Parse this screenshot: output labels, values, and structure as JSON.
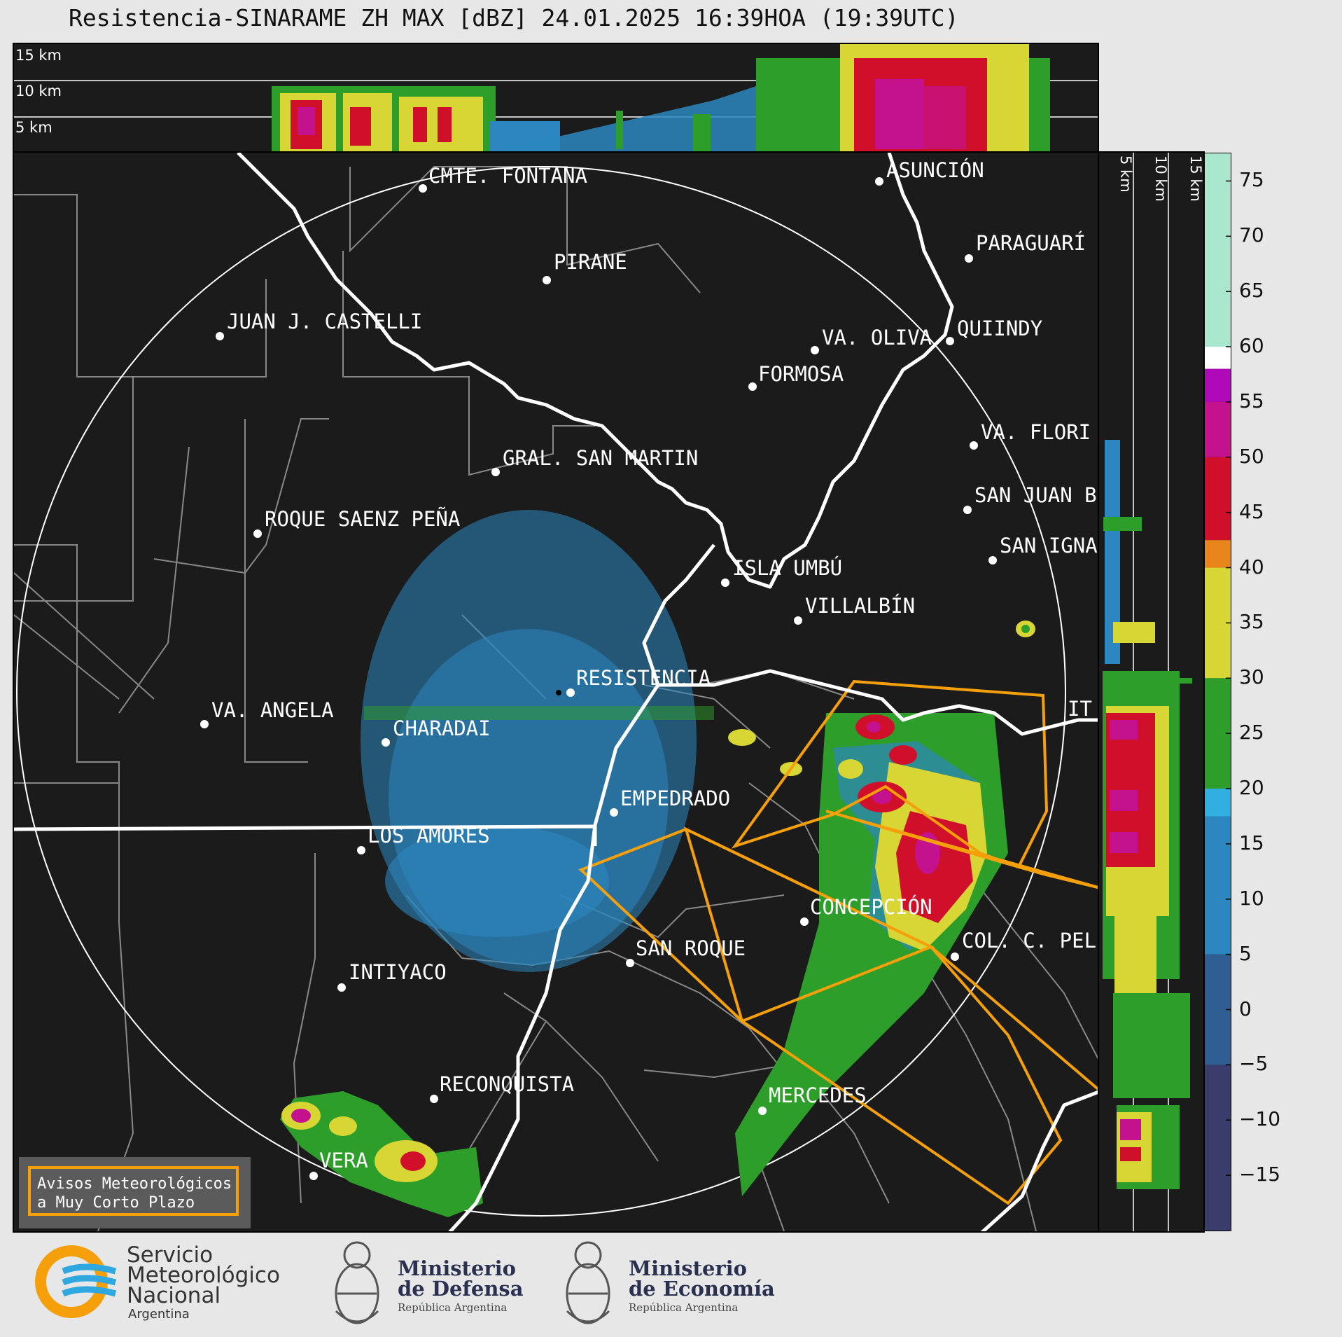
{
  "title": "Resistencia-SINARAME ZH MAX [dBZ] 24.01.2025 16:39HOA (19:39UTC)",
  "top_panel": {
    "height_labels": [
      "15 km",
      "10 km",
      "5 km"
    ]
  },
  "side_panel": {
    "height_labels": [
      "5 km",
      "10 km",
      "15 km"
    ]
  },
  "colorbar": {
    "unit": "dBZ",
    "ticks": [
      "75",
      "70",
      "65",
      "60",
      "55",
      "50",
      "45",
      "40",
      "35",
      "30",
      "25",
      "20",
      "15",
      "10",
      "5",
      "0",
      "−5",
      "−10",
      "−15"
    ],
    "range": [
      -20,
      77.5
    ],
    "bands": [
      {
        "from": -20,
        "to": -5,
        "color": "#3a3d6c"
      },
      {
        "from": -5,
        "to": 5,
        "color": "#2f5e92"
      },
      {
        "from": 5,
        "to": 17.5,
        "color": "#2c87c0"
      },
      {
        "from": 17.5,
        "to": 20,
        "color": "#2fb0e0"
      },
      {
        "from": 20,
        "to": 30,
        "color": "#2e9e2a"
      },
      {
        "from": 30,
        "to": 40,
        "color": "#d7d634"
      },
      {
        "from": 40,
        "to": 42.5,
        "color": "#e8861c"
      },
      {
        "from": 42.5,
        "to": 50,
        "color": "#d0102a"
      },
      {
        "from": 50,
        "to": 55,
        "color": "#c4128f"
      },
      {
        "from": 55,
        "to": 58,
        "color": "#b00ab8"
      },
      {
        "from": 58,
        "to": 60,
        "color": "#ffffff"
      },
      {
        "from": 60,
        "to": 77.5,
        "color": "#a9e8cf"
      }
    ]
  },
  "map": {
    "cities": [
      {
        "name": "CMTE. FONTANA"
      },
      {
        "name": "ASUNCIÓN"
      },
      {
        "name": "PARAGUARÍ"
      },
      {
        "name": "PIRANE"
      },
      {
        "name": "JUAN J. CASTELLI"
      },
      {
        "name": "VA. OLIVA"
      },
      {
        "name": "QUIINDY"
      },
      {
        "name": "FORMOSA"
      },
      {
        "name": "VA. FLORI"
      },
      {
        "name": "GRAL. SAN MARTIN"
      },
      {
        "name": "SAN JUAN B"
      },
      {
        "name": "ROQUE SAENZ PEÑA"
      },
      {
        "name": "SAN IGNA"
      },
      {
        "name": "ISLA UMBÚ"
      },
      {
        "name": "VILLALBÍN"
      },
      {
        "name": "RESISTENCIA"
      },
      {
        "name": "VA. ANGELA"
      },
      {
        "name": "CHARADAI"
      },
      {
        "name": "IT"
      },
      {
        "name": "EMPEDRADO"
      },
      {
        "name": "LOS AMORES"
      },
      {
        "name": "CONCEPCIÓN"
      },
      {
        "name": "SAN ROQUE"
      },
      {
        "name": "COL. C. PEL"
      },
      {
        "name": "INTIYACO"
      },
      {
        "name": "RECONQUISTA"
      },
      {
        "name": "MERCEDES"
      },
      {
        "name": "VERA"
      }
    ]
  },
  "avisos": {
    "line1": "Avisos Meteorológicos",
    "line2": "a Muy Corto Plazo"
  },
  "logos": {
    "smn_line1": "Servicio",
    "smn_line2": "Meteorológico",
    "smn_line3": "Nacional",
    "smn_country": "Argentina",
    "defensa_line1": "Ministerio",
    "defensa_line2": "de Defensa",
    "defensa_sub": "República Argentina",
    "economia_line1": "Ministerio",
    "economia_line2": "de Economía",
    "economia_sub": "República Argentina"
  },
  "colors": {
    "background": "#1b1b1b",
    "warning_polygon": "#f5a00a",
    "river": "#ffffff",
    "boundary": "#888888"
  }
}
